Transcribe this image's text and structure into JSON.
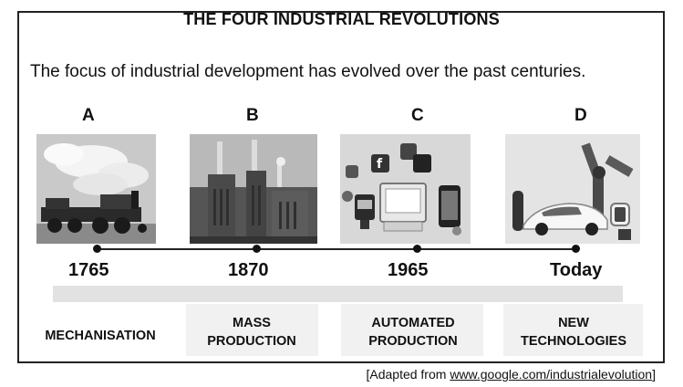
{
  "title": "THE FOUR INDUSTRIAL REVOLUTIONS",
  "subtitle": "The focus of industrial development has evolved over the past centuries.",
  "revolutions": [
    {
      "letter": "A",
      "year": "1765",
      "stage": "MECHANISATION",
      "image": "steam-locomotive"
    },
    {
      "letter": "B",
      "year": "1870",
      "stage": "MASS\nPRODUCTION",
      "image": "factory-chimneys"
    },
    {
      "letter": "C",
      "year": "1965",
      "stage": "AUTOMATED\nPRODUCTION",
      "image": "computer-and-social-media"
    },
    {
      "letter": "D",
      "year": "Today",
      "stage": "NEW\nTECHNOLOGIES",
      "image": "robot-arm-and-car"
    }
  ],
  "source": {
    "prefix": "[Adapted from ",
    "link": "www.google.com/industrialevolution",
    "suffix": "]"
  }
}
